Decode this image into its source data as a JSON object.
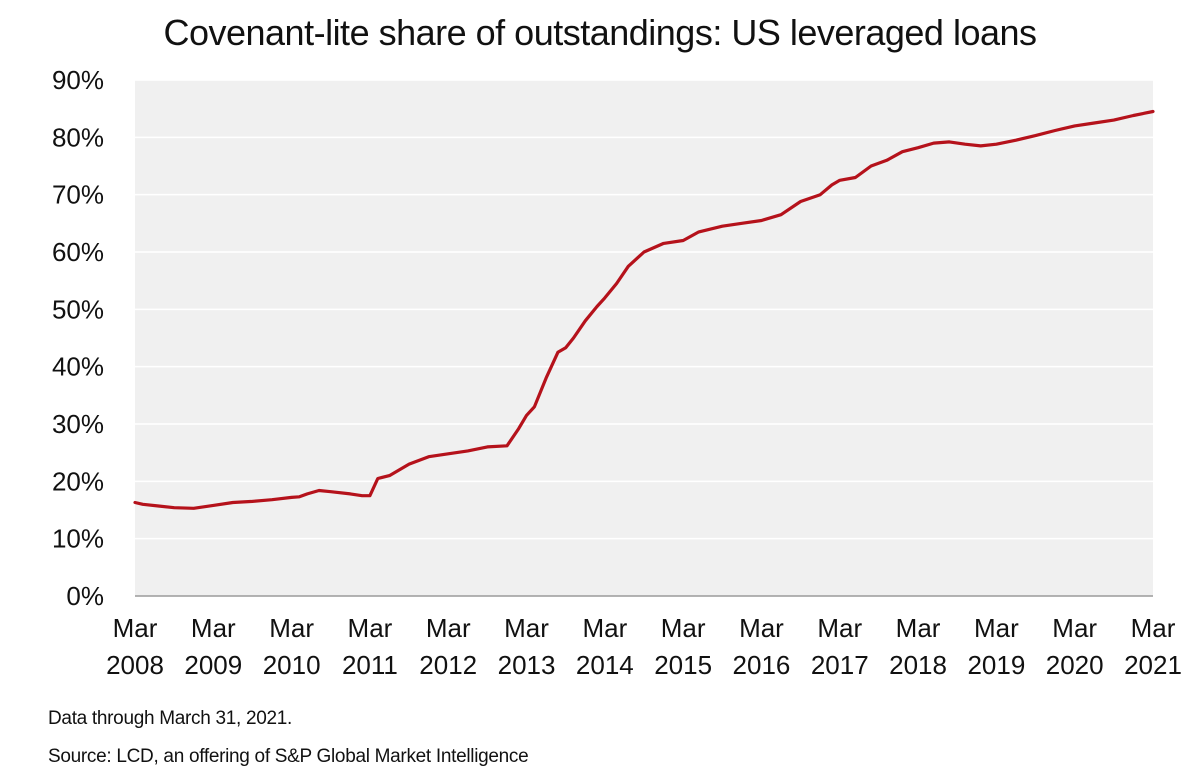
{
  "chart_data": {
    "type": "line",
    "title": "Covenant-lite share of outstandings: US leveraged loans",
    "xlabel": "",
    "ylabel": "",
    "ylim": [
      0,
      90
    ],
    "yticks": [
      0,
      10,
      20,
      30,
      40,
      50,
      60,
      70,
      80,
      90
    ],
    "ytick_labels": [
      "0%",
      "10%",
      "20%",
      "30%",
      "40%",
      "50%",
      "60%",
      "70%",
      "80%",
      "90%"
    ],
    "xlim": [
      2008.0,
      2021.0
    ],
    "xticks": [
      {
        "month": "Mar",
        "year": "2008",
        "x": 2008
      },
      {
        "month": "Mar",
        "year": "2009",
        "x": 2009
      },
      {
        "month": "Mar",
        "year": "2010",
        "x": 2010
      },
      {
        "month": "Mar",
        "year": "2011",
        "x": 2011
      },
      {
        "month": "Mar",
        "year": "2012",
        "x": 2012
      },
      {
        "month": "Mar",
        "year": "2013",
        "x": 2013
      },
      {
        "month": "Mar",
        "year": "2014",
        "x": 2014
      },
      {
        "month": "Mar",
        "year": "2015",
        "x": 2015
      },
      {
        "month": "Mar",
        "year": "2016",
        "x": 2016
      },
      {
        "month": "Mar",
        "year": "2017",
        "x": 2017
      },
      {
        "month": "Mar",
        "year": "2018",
        "x": 2018
      },
      {
        "month": "Mar",
        "year": "2019",
        "x": 2019
      },
      {
        "month": "Mar",
        "year": "2020",
        "x": 2020
      },
      {
        "month": "Mar",
        "year": "2021",
        "x": 2021
      }
    ],
    "grid": true,
    "legend": "none",
    "colors": {
      "line": "#b5121b",
      "plot_background": "#f0f0f0",
      "gridline": "#ffffff"
    },
    "series": [
      {
        "x": [
          2008.0,
          2008.1,
          2008.3,
          2008.5,
          2008.75,
          2009.0,
          2009.25,
          2009.5,
          2009.75,
          2010.0,
          2010.1,
          2010.2,
          2010.35,
          2010.5,
          2010.75,
          2010.9,
          2011.0,
          2011.1,
          2011.25,
          2011.5,
          2011.75,
          2012.0,
          2012.25,
          2012.5,
          2012.75,
          2012.9,
          2013.0,
          2013.1,
          2013.25,
          2013.4,
          2013.5,
          2013.6,
          2013.75,
          2013.9,
          2014.0,
          2014.15,
          2014.3,
          2014.5,
          2014.75,
          2015.0,
          2015.2,
          2015.5,
          2015.75,
          2016.0,
          2016.25,
          2016.5,
          2016.75,
          2016.9,
          2017.0,
          2017.2,
          2017.4,
          2017.6,
          2017.8,
          2018.0,
          2018.2,
          2018.4,
          2018.6,
          2018.8,
          2019.0,
          2019.25,
          2019.5,
          2019.75,
          2020.0,
          2020.25,
          2020.5,
          2020.75,
          2021.0
        ],
        "y": [
          16.3,
          16.0,
          15.7,
          15.4,
          15.3,
          15.8,
          16.3,
          16.5,
          16.8,
          17.2,
          17.3,
          17.8,
          18.4,
          18.2,
          17.8,
          17.5,
          17.5,
          20.5,
          21.0,
          23.0,
          24.3,
          24.8,
          25.3,
          26.0,
          26.2,
          29.2,
          31.5,
          33.0,
          38.0,
          42.5,
          43.3,
          45.0,
          48.0,
          50.5,
          52.0,
          54.5,
          57.5,
          60.0,
          61.5,
          62.0,
          63.5,
          64.5,
          65.0,
          65.5,
          66.5,
          68.8,
          70.0,
          71.7,
          72.5,
          73.0,
          75.0,
          76.0,
          77.5,
          78.2,
          79.0,
          79.2,
          78.8,
          78.5,
          78.8,
          79.5,
          80.3,
          81.2,
          82.0,
          82.5,
          83.0,
          83.8,
          84.5
        ]
      }
    ],
    "notes": [
      "Data through March 31, 2021.",
      "Source: LCD, an offering of S&P Global Market Intelligence"
    ]
  }
}
